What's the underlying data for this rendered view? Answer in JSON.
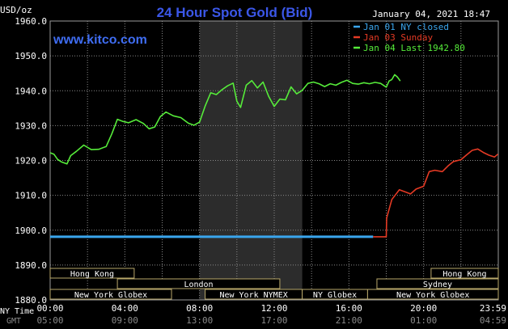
{
  "header": {
    "unit": "USD/oz",
    "title": "24 Hour Spot Gold (Bid)",
    "timestamp": "January 04, 2021 18:47",
    "watermark": "www.kitco.com"
  },
  "colors": {
    "background": "#000000",
    "title": "#3b57e8",
    "watermark": "#3f6df2",
    "grid": "#888888",
    "text": "#ffffff",
    "highlight": "#2c2c2c",
    "series_closed": "#3aa6ee",
    "series_sunday": "#e53a24",
    "series_last": "#56ec3a",
    "session_box": "#b8a76a"
  },
  "legend": [
    {
      "label": "Jan 01 NY closed",
      "color": "#3aa6ee"
    },
    {
      "label": "Jan 03 Sunday",
      "color": "#e53a24"
    },
    {
      "label": "Jan 04 Last 1942.80",
      "color": "#56ec3a"
    }
  ],
  "sessions": {
    "row1": [
      {
        "label": "Hong Kong",
        "start": 0,
        "end": 4.5
      },
      {
        "label": "Hong Kong",
        "start": 20.4,
        "end": 24
      }
    ],
    "row2": [
      {
        "label": "London",
        "start": 3.6,
        "end": 12.3
      },
      {
        "label": "Sydney",
        "start": 17.5,
        "end": 24
      }
    ],
    "row3": [
      {
        "label": "New York Globex",
        "start": 0,
        "end": 6.5
      },
      {
        "label": "New York NYMEX",
        "start": 8.3,
        "end": 13.5
      },
      {
        "label": "NY Globex",
        "start": 13.5,
        "end": 17.0
      },
      {
        "label": "New York Globex",
        "start": 17.0,
        "end": 24
      }
    ]
  },
  "footer": {
    "ny_time_label": "NY Time",
    "gmt_label": "GMT",
    "ny_ticks": [
      "00:00",
      "04:00",
      "08:00",
      "12:00",
      "16:00",
      "20:00",
      "23:59"
    ],
    "gmt_ticks": [
      "05:00",
      "09:00",
      "13:00",
      "17:00",
      "21:00",
      "01:00",
      "04:59"
    ]
  },
  "chart_data": {
    "type": "line",
    "title": "24 Hour Spot Gold (Bid)",
    "ylabel": "USD/oz",
    "xlabel": "NY Time",
    "ylim": [
      1880,
      1960
    ],
    "yticks": [
      "1960.0",
      "1950.0",
      "1940.0",
      "1930.0",
      "1920.0",
      "1910.0",
      "1900.0",
      "1890.0",
      "1880.0"
    ],
    "xlim": [
      0,
      24
    ],
    "x_unit": "hours (NY time)",
    "highlight_range": [
      8.0,
      13.5
    ],
    "grid": true,
    "legend_position": "top-right",
    "series": [
      {
        "name": "Jan 01 NY closed",
        "color": "#3aa6ee",
        "x": [
          0,
          17.3
        ],
        "y": [
          1898.1,
          1898.1
        ]
      },
      {
        "name": "Jan 03 Sunday",
        "color": "#e53a24",
        "x": [
          17.3,
          18.0,
          18.02,
          18.1,
          18.3,
          18.5,
          18.7,
          19.0,
          19.3,
          19.6,
          20.0,
          20.3,
          20.6,
          21.0,
          21.3,
          21.6,
          22.0,
          22.3,
          22.6,
          22.9,
          23.2,
          23.5,
          23.8,
          23.98
        ],
        "y": [
          1898.1,
          1898.1,
          1903.5,
          1905.0,
          1908.8,
          1910.2,
          1911.6,
          1911.0,
          1910.4,
          1911.8,
          1912.6,
          1916.8,
          1917.2,
          1916.8,
          1918.4,
          1919.7,
          1920.2,
          1921.6,
          1922.9,
          1923.3,
          1922.3,
          1921.5,
          1921.0,
          1921.8
        ]
      },
      {
        "name": "Jan 04 Last 1942.80",
        "color": "#56ec3a",
        "x": [
          0,
          0.2,
          0.4,
          0.6,
          0.9,
          1.1,
          1.4,
          1.8,
          2.2,
          2.6,
          3.0,
          3.3,
          3.6,
          3.9,
          4.2,
          4.6,
          5.0,
          5.3,
          5.6,
          5.9,
          6.2,
          6.6,
          7.0,
          7.4,
          7.7,
          8.0,
          8.3,
          8.6,
          8.9,
          9.2,
          9.5,
          9.8,
          10.0,
          10.2,
          10.5,
          10.8,
          11.1,
          11.4,
          11.7,
          12.0,
          12.3,
          12.6,
          12.9,
          13.2,
          13.5,
          13.8,
          14.1,
          14.4,
          14.7,
          15.0,
          15.3,
          15.6,
          15.9,
          16.2,
          16.5,
          16.8,
          17.1,
          17.4,
          17.7,
          18.0,
          18.15,
          18.3,
          18.45,
          18.6,
          18.75
        ],
        "y": [
          1922.2,
          1921.8,
          1920.3,
          1919.6,
          1919.0,
          1921.4,
          1922.6,
          1924.4,
          1923.1,
          1923.2,
          1924.0,
          1927.6,
          1931.8,
          1931.2,
          1930.8,
          1931.7,
          1930.6,
          1929.1,
          1929.6,
          1932.6,
          1933.9,
          1932.8,
          1932.3,
          1930.7,
          1930.1,
          1931.0,
          1935.6,
          1939.4,
          1938.9,
          1940.3,
          1941.4,
          1942.2,
          1937.0,
          1935.2,
          1941.6,
          1942.9,
          1940.8,
          1942.5,
          1938.4,
          1935.5,
          1937.6,
          1937.4,
          1941.1,
          1939.1,
          1940.1,
          1942.1,
          1942.5,
          1942.0,
          1941.2,
          1942.0,
          1941.6,
          1942.4,
          1943.0,
          1942.1,
          1941.9,
          1942.3,
          1942.0,
          1942.4,
          1942.1,
          1941.0,
          1942.8,
          1943.2,
          1944.6,
          1943.9,
          1942.8
        ]
      }
    ]
  }
}
